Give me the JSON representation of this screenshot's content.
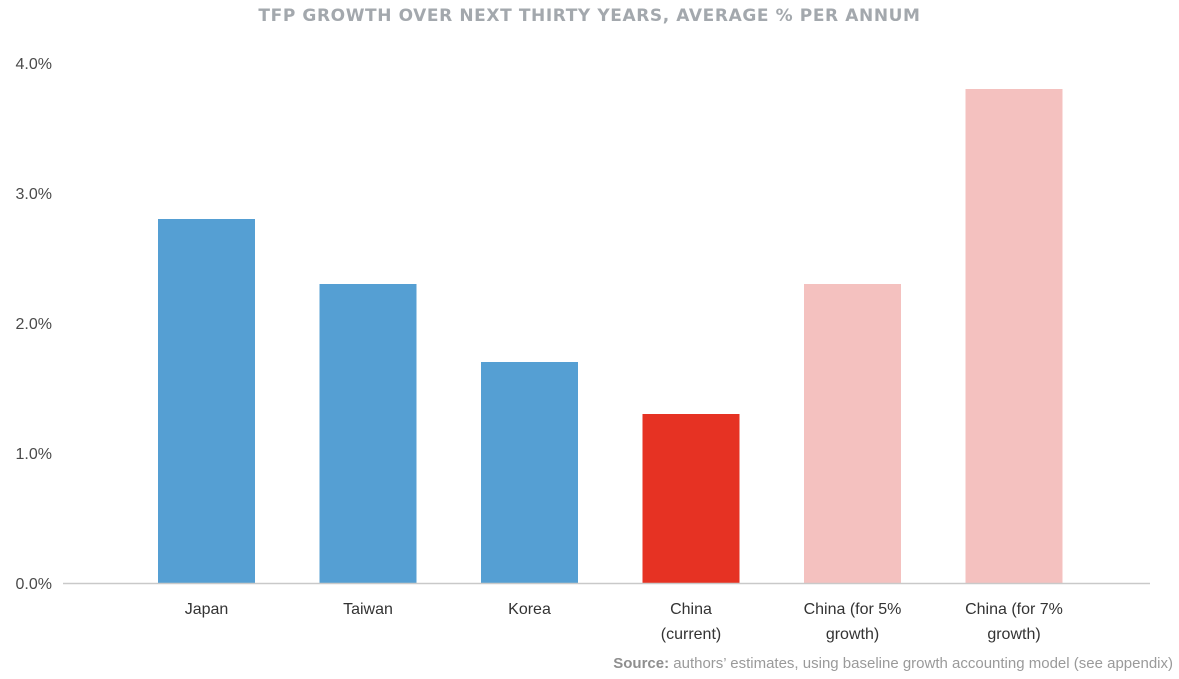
{
  "chart_data": {
    "type": "bar",
    "title": "TFP GROWTH OVER NEXT THIRTY YEARS, AVERAGE % PER ANNUM",
    "categories": [
      "Japan",
      "Taiwan",
      "Korea",
      "China (current)",
      "China (for 5% growth)",
      "China (for 7% growth)"
    ],
    "category_lines": [
      [
        "Japan"
      ],
      [
        "Taiwan"
      ],
      [
        "Korea"
      ],
      [
        "China",
        "(current)"
      ],
      [
        "China (for 5%",
        "growth)"
      ],
      [
        "China (for 7%",
        "growth)"
      ]
    ],
    "values": [
      2.8,
      2.3,
      1.7,
      1.3,
      2.3,
      3.8
    ],
    "colors": [
      "#559fd3",
      "#559fd3",
      "#559fd3",
      "#e63223",
      "#f4c1bf",
      "#f4c1bf"
    ],
    "yticks": [
      0,
      1,
      2,
      3,
      4
    ],
    "ytick_labels": [
      "0.0%",
      "1.0%",
      "2.0%",
      "3.0%",
      "4.0%"
    ],
    "ylim": [
      0,
      4
    ],
    "xlabel": "",
    "ylabel": "",
    "grid": false,
    "legend": "none"
  },
  "source": {
    "label": "Source:",
    "text": "authors’ estimates, using baseline growth accounting model (see appendix)"
  }
}
